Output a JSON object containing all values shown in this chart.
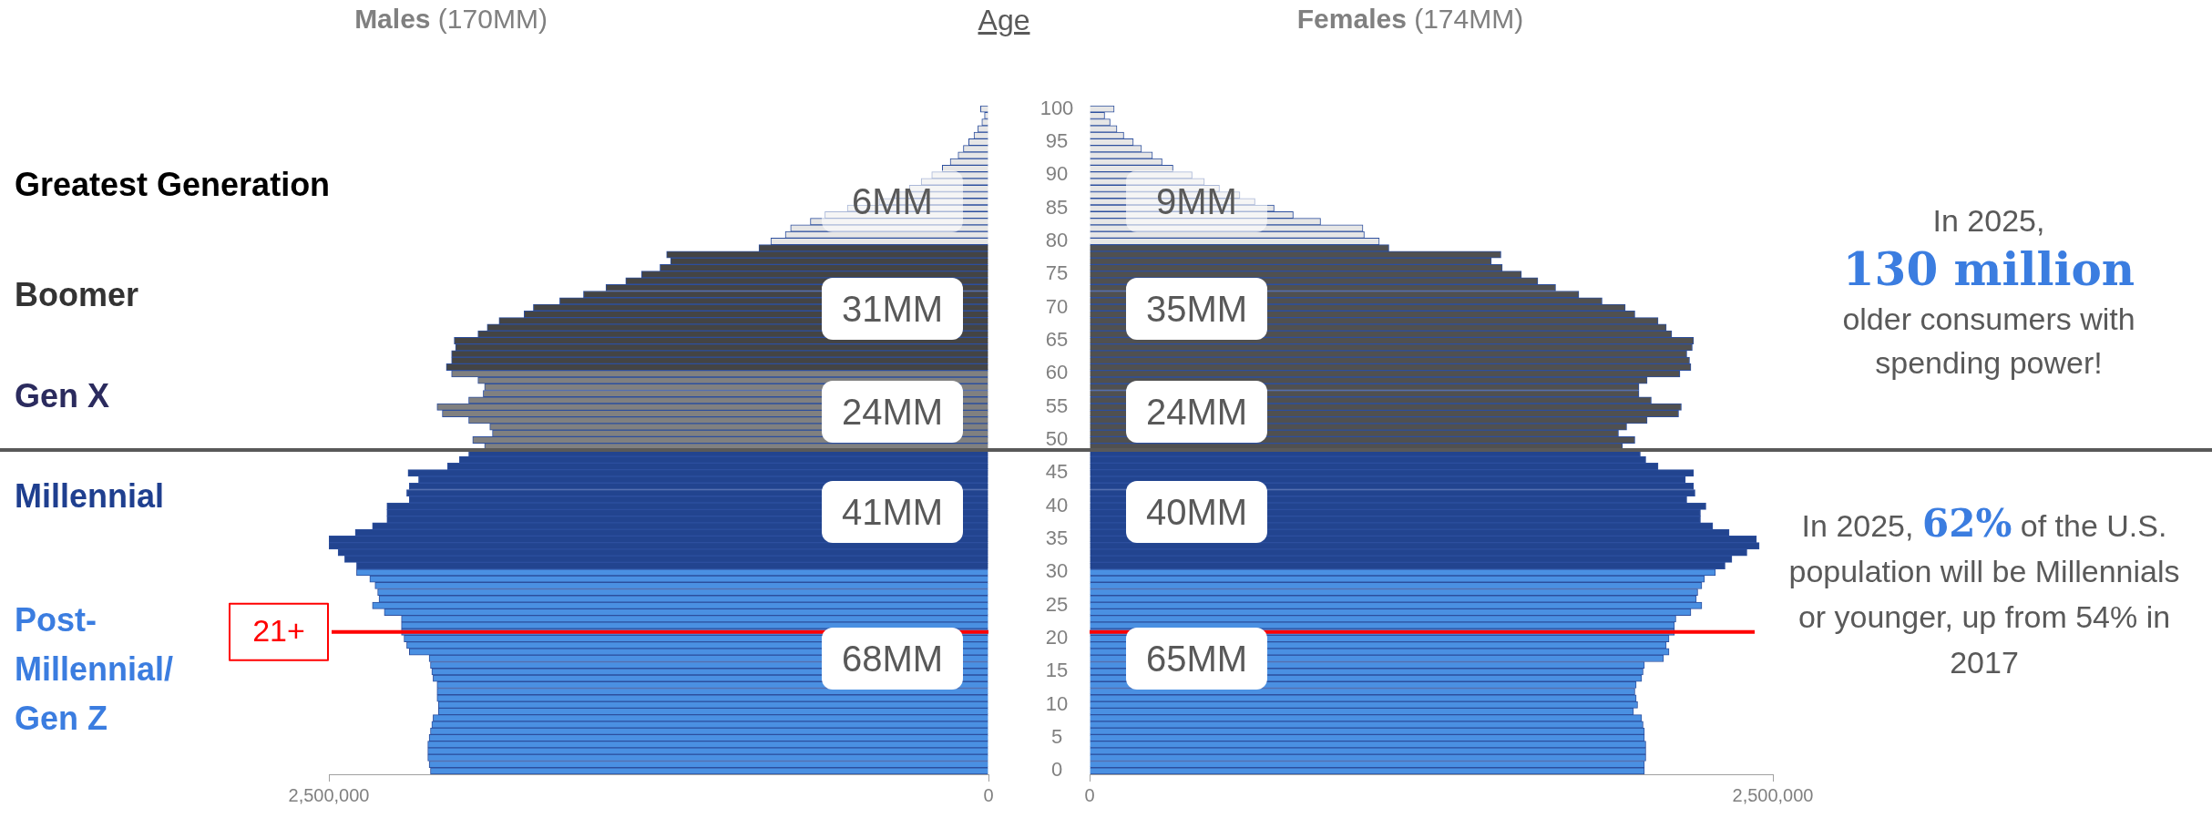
{
  "chart_data": [
    {
      "type": "bar",
      "orientation": "horizontal",
      "title": "Males (170MM)",
      "ylabel": "Age",
      "series": [
        {
          "color": "#4a90e2",
          "x": [
            0,
            1,
            2,
            3,
            4,
            5,
            6,
            7,
            8,
            9,
            10,
            11,
            12,
            13,
            14,
            15,
            16,
            17,
            18,
            19,
            20,
            21,
            22,
            23,
            24,
            25,
            26,
            27,
            28,
            29,
            30
          ],
          "values": [
            2115000,
            2120000,
            2125000,
            2125000,
            2125000,
            2120000,
            2115000,
            2110000,
            2105000,
            2085000,
            2085000,
            2090000,
            2090000,
            2090000,
            2105000,
            2110000,
            2115000,
            2120000,
            2195000,
            2205000,
            2215000,
            2225000,
            2225000,
            2225000,
            2290000,
            2335000,
            2310000,
            2315000,
            2325000,
            2345000,
            2395000
          ]
        },
        {
          "color": "#22448f",
          "x": [
            31,
            32,
            33,
            34,
            35,
            36,
            37,
            38,
            39,
            40,
            41,
            42,
            43,
            44,
            45,
            46,
            47,
            48
          ],
          "values": [
            2395000,
            2440000,
            2465000,
            2500000,
            2500000,
            2400000,
            2335000,
            2280000,
            2280000,
            2280000,
            2195000,
            2205000,
            2195000,
            2160000,
            2200000,
            2050000,
            2005000,
            1970000
          ]
        },
        {
          "color": "#808080",
          "x": [
            49,
            50,
            51,
            52,
            53,
            54,
            55,
            56,
            57,
            58,
            59,
            60
          ],
          "values": [
            1910000,
            1955000,
            1880000,
            1890000,
            1970000,
            2070000,
            2090000,
            1970000,
            1915000,
            1910000,
            1935000,
            2035000
          ]
        },
        {
          "color": "#444444",
          "x": [
            61,
            62,
            63,
            64,
            65,
            66,
            67,
            68,
            69,
            70,
            71,
            72,
            73,
            74,
            75,
            76,
            77,
            78,
            79
          ],
          "values": [
            2055000,
            2035000,
            2035000,
            2020000,
            2025000,
            1935000,
            1900000,
            1855000,
            1760000,
            1725000,
            1625000,
            1535000,
            1450000,
            1375000,
            1315000,
            1245000,
            1205000,
            1220000,
            870000
          ]
        },
        {
          "color": "#e6e6e6",
          "x": [
            80,
            81,
            82,
            83,
            84,
            85,
            86,
            87,
            88,
            89,
            90,
            91,
            92,
            93,
            94,
            95,
            96,
            97,
            98,
            99,
            100
          ],
          "values": [
            825000,
            770000,
            750000,
            675000,
            620000,
            535000,
            415000,
            355000,
            300000,
            255000,
            215000,
            175000,
            145000,
            115000,
            95000,
            75000,
            55000,
            40000,
            25000,
            15000,
            30000
          ]
        }
      ],
      "xlim": [
        2500000,
        0
      ],
      "xticks": [
        {
          "value": 2500000,
          "label": "2,500,000"
        },
        0
      ],
      "ylim": [
        -0.5,
        100.5
      ],
      "yticks": [
        0,
        5,
        10,
        15,
        20,
        25,
        30,
        35,
        40,
        45,
        50,
        55,
        60,
        65,
        70,
        75,
        80,
        85,
        90,
        95,
        100
      ],
      "ref_lines": [
        {
          "axis": "y",
          "value": 48.5,
          "color": "#595959"
        },
        {
          "axis": "y",
          "value": 21,
          "label": "21+",
          "color": "#ff0000"
        }
      ],
      "annotations": [
        "Greatest Generation",
        "Boomer",
        "Gen X",
        "Millennial",
        "Post-Millennial/ Gen Z",
        "6MM",
        "31MM",
        "24MM",
        "41MM",
        "68MM"
      ]
    },
    {
      "type": "bar",
      "orientation": "horizontal",
      "title": "Females (174MM)",
      "tick_labels": "x",
      "series": [
        {
          "color": "#4a90e2",
          "x": [
            0,
            1,
            2,
            3,
            4,
            5,
            6,
            7,
            8,
            9,
            10,
            11,
            12,
            13,
            14,
            15,
            16,
            17,
            18,
            19,
            20,
            21,
            22,
            23,
            24,
            25,
            26,
            27,
            28,
            29,
            30
          ],
          "values": [
            2030000,
            2030000,
            2035000,
            2035000,
            2035000,
            2030000,
            2030000,
            2025000,
            2020000,
            1990000,
            2005000,
            2000000,
            1995000,
            2000000,
            2020000,
            2025000,
            2030000,
            2100000,
            2120000,
            2110000,
            2120000,
            2140000,
            2140000,
            2145000,
            2200000,
            2240000,
            2220000,
            2225000,
            2240000,
            2250000,
            2290000
          ]
        },
        {
          "color": "#22448f",
          "x": [
            31,
            32,
            33,
            34,
            35,
            36,
            37,
            38,
            39,
            40,
            41,
            42,
            43,
            44,
            45,
            46,
            47,
            48
          ],
          "values": [
            2325000,
            2350000,
            2405000,
            2450000,
            2440000,
            2340000,
            2280000,
            2235000,
            2235000,
            2255000,
            2185000,
            2215000,
            2210000,
            2180000,
            2210000,
            2080000,
            2035000,
            2015000
          ]
        },
        {
          "color": "#505050",
          "x": [
            49,
            50,
            51,
            52,
            53,
            54,
            55,
            56,
            57,
            58,
            59,
            60,
            61,
            62,
            63,
            64,
            65,
            66,
            67,
            68,
            69,
            70,
            71,
            72,
            73,
            74,
            75,
            76,
            77,
            78,
            79
          ],
          "values": [
            1950000,
            1995000,
            1935000,
            1965000,
            2040000,
            2155000,
            2165000,
            2055000,
            2010000,
            2010000,
            2040000,
            2160000,
            2200000,
            2195000,
            2185000,
            2205000,
            2210000,
            2130000,
            2110000,
            2080000,
            1995000,
            1960000,
            1875000,
            1790000,
            1705000,
            1640000,
            1580000,
            1510000,
            1470000,
            1505000,
            1095000
          ]
        },
        {
          "color": "#e6e6e6",
          "x": [
            80,
            81,
            82,
            83,
            84,
            85,
            86,
            87,
            88,
            89,
            90,
            91,
            92,
            93,
            94,
            95,
            96,
            97,
            98,
            99,
            100
          ],
          "values": [
            1060000,
            1005000,
            1000000,
            845000,
            745000,
            675000,
            605000,
            550000,
            475000,
            420000,
            375000,
            305000,
            265000,
            230000,
            190000,
            160000,
            125000,
            100000,
            75000,
            55000,
            90000
          ]
        }
      ],
      "xlim": [
        0,
        2500000
      ],
      "xticks": [
        0,
        {
          "value": 2500000,
          "label": "2,500,000"
        }
      ],
      "ylim": [
        -0.5,
        100.5
      ],
      "ref_lines": [
        {
          "axis": "y",
          "value": 48.5,
          "color": "#595959"
        },
        {
          "axis": "y",
          "value": 21,
          "color": "#ff0000"
        }
      ],
      "annotations": [
        "9MM",
        "35MM",
        "24MM",
        "40MM",
        "65MM",
        "In 2025,",
        "130 million",
        "older consumers with spending power!",
        "In 2025,",
        "62%",
        "of the U.S. population will be Millennials or younger, up from 54% in 2017"
      ]
    }
  ]
}
